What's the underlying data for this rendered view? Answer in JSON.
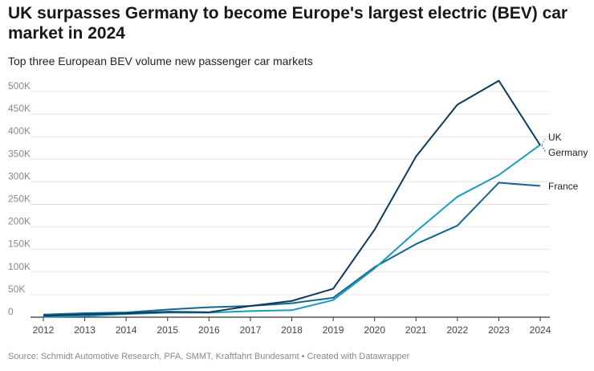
{
  "chart_data": {
    "type": "line",
    "title": "UK surpasses Germany to become Europe's largest electric (BEV) car market in 2024",
    "subtitle": "Top three European BEV volume new passenger car markets",
    "x": [
      2012,
      2013,
      2014,
      2015,
      2016,
      2017,
      2018,
      2019,
      2020,
      2021,
      2022,
      2023,
      2024
    ],
    "x_tick_labels": [
      "2012",
      "2013",
      "2014",
      "2015",
      "2016",
      "2017",
      "2018",
      "2019",
      "2020",
      "2021",
      "2022",
      "2023",
      "2024"
    ],
    "y_ticks": [
      0,
      50000,
      100000,
      150000,
      200000,
      250000,
      300000,
      350000,
      400000,
      450000,
      500000
    ],
    "y_tick_labels": [
      "0",
      "50K",
      "100K",
      "150K",
      "200K",
      "250K",
      "300K",
      "350K",
      "400K",
      "450K",
      "500K"
    ],
    "ylim": [
      0,
      520000
    ],
    "grid": true,
    "legend": "direct labels at line ends",
    "series": [
      {
        "name": "Germany",
        "color": "#0d3a5c",
        "values": [
          3000,
          6000,
          8500,
          12000,
          11000,
          25000,
          36000,
          63000,
          194000,
          356000,
          471000,
          524000,
          381000
        ]
      },
      {
        "name": "UK",
        "color": "#1b9ac2",
        "values": [
          1000,
          2500,
          7000,
          9900,
          10000,
          13600,
          15500,
          37900,
          108000,
          190000,
          267000,
          315000,
          382000
        ]
      },
      {
        "name": "France",
        "color": "#17658f",
        "values": [
          5700,
          8800,
          10500,
          17000,
          22000,
          25000,
          31000,
          43000,
          111000,
          162000,
          203000,
          298000,
          291000
        ]
      }
    ],
    "source": "Source: Schmidt Automotive Research, PFA, SMMT, Kraftfahrt Bundesamt • Created with Datawrapper"
  }
}
